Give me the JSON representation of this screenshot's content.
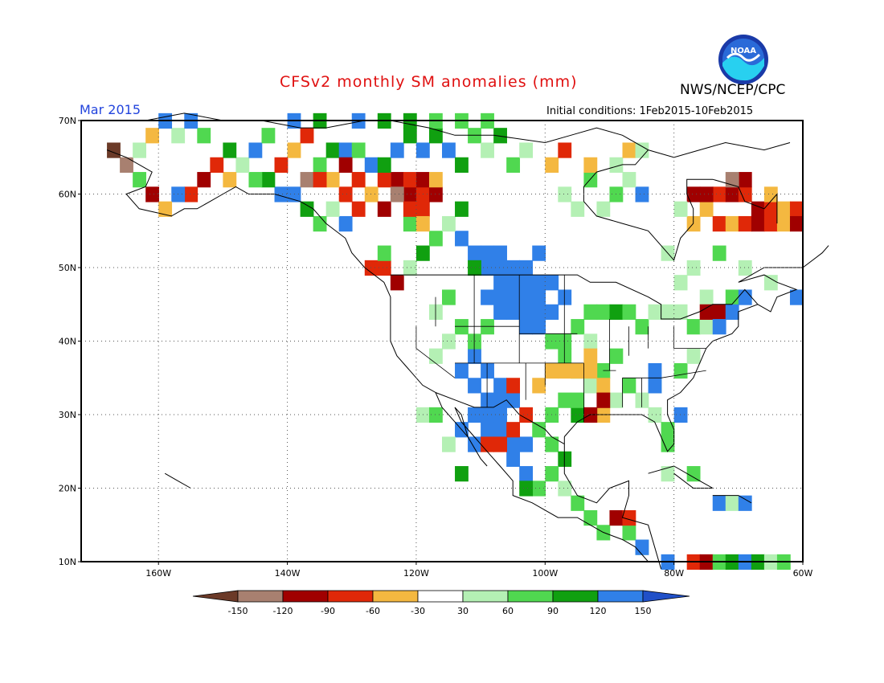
{
  "header": {
    "title": "CFSv2 monthly SM anomalies (mm)",
    "agency": "NWS/NCEP/CPC",
    "period": "Mar 2015",
    "initial_conditions": "Initial conditions:  1Feb2015-10Feb2015",
    "logo_text": "NOAA"
  },
  "map": {
    "lon_range": [
      -172,
      -60
    ],
    "lat_range": [
      10,
      70
    ],
    "lat_labels": [
      "10N",
      "20N",
      "30N",
      "40N",
      "50N",
      "60N",
      "70N"
    ],
    "lon_labels": [
      "160W",
      "140W",
      "120W",
      "100W",
      "80W",
      "60W"
    ]
  },
  "legend": {
    "ticks": [
      "-150",
      "-120",
      "-90",
      "-60",
      "-30",
      "30",
      "60",
      "90",
      "120",
      "150"
    ],
    "colors": [
      "#6b3a28",
      "#a88070",
      "#a00000",
      "#e02808",
      "#f4b840",
      "#ffffff",
      "#b4f0b4",
      "#50d850",
      "#10a010",
      "#3080e8",
      "#2050c8"
    ]
  }
}
